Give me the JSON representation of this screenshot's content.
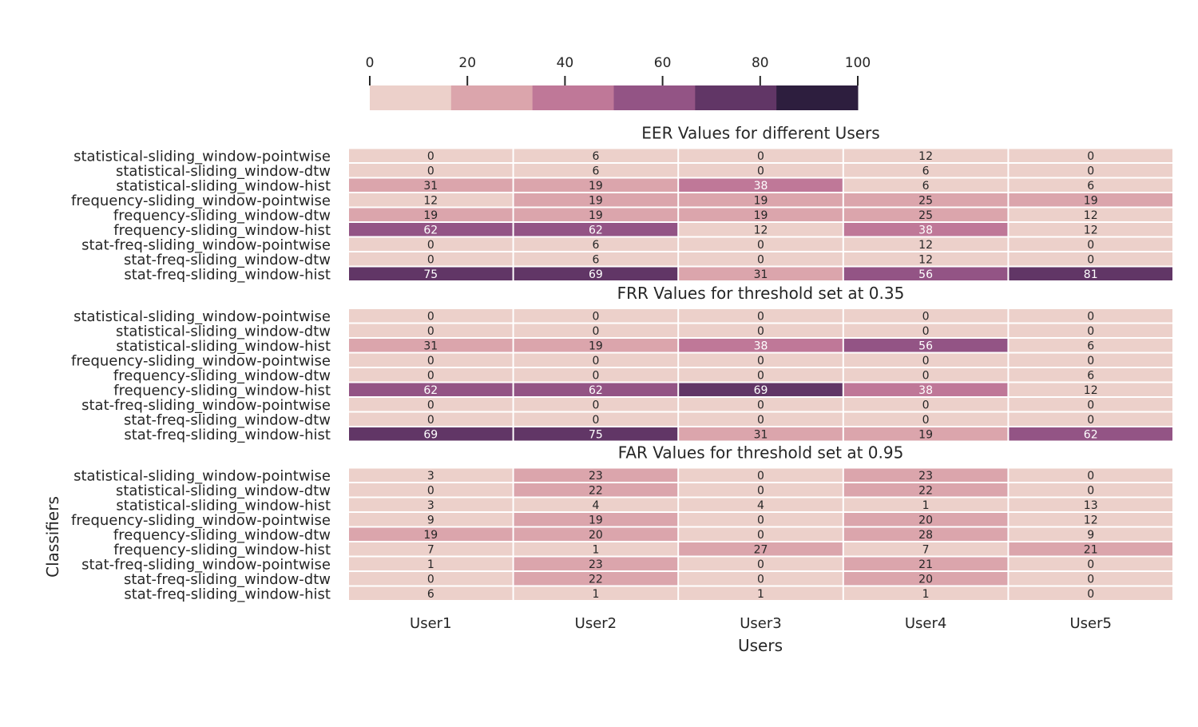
{
  "colorbar": {
    "ticks": [
      0,
      20,
      40,
      60,
      80,
      100
    ],
    "range": [
      0,
      100
    ],
    "colors": [
      "#ecd0ca",
      "#dba5ac",
      "#bf7898",
      "#935485",
      "#613666",
      "#2d1e3e"
    ]
  },
  "chart_data": {
    "type": "heatmap",
    "xlabel": "Users",
    "ylabel": "Classifiers",
    "x_categories": [
      "User1",
      "User2",
      "User3",
      "User4",
      "User5"
    ],
    "y_categories": [
      "statistical-sliding_window-pointwise",
      "statistical-sliding_window-dtw",
      "statistical-sliding_window-hist",
      "frequency-sliding_window-pointwise",
      "frequency-sliding_window-dtw",
      "frequency-sliding_window-hist",
      "stat-freq-sliding_window-pointwise",
      "stat-freq-sliding_window-dtw",
      "stat-freq-sliding_window-hist"
    ],
    "panels": [
      {
        "title": "EER Values for different Users",
        "values": [
          [
            0,
            6,
            0,
            12,
            0
          ],
          [
            0,
            6,
            0,
            6,
            0
          ],
          [
            31,
            19,
            38,
            6,
            6
          ],
          [
            12,
            19,
            19,
            25,
            19
          ],
          [
            19,
            19,
            19,
            25,
            12
          ],
          [
            62,
            62,
            12,
            38,
            12
          ],
          [
            0,
            6,
            0,
            12,
            0
          ],
          [
            0,
            6,
            0,
            12,
            0
          ],
          [
            75,
            69,
            31,
            56,
            81
          ]
        ]
      },
      {
        "title": "FRR Values for threshold set at 0.35",
        "values": [
          [
            0,
            0,
            0,
            0,
            0
          ],
          [
            0,
            0,
            0,
            0,
            0
          ],
          [
            31,
            19,
            38,
            56,
            6
          ],
          [
            0,
            0,
            0,
            0,
            0
          ],
          [
            0,
            0,
            0,
            0,
            6
          ],
          [
            62,
            62,
            69,
            38,
            12
          ],
          [
            0,
            0,
            0,
            0,
            0
          ],
          [
            0,
            0,
            0,
            0,
            0
          ],
          [
            69,
            75,
            31,
            19,
            62
          ]
        ]
      },
      {
        "title": "FAR Values for threshold set at 0.95",
        "values": [
          [
            3,
            23,
            0,
            23,
            0
          ],
          [
            0,
            22,
            0,
            22,
            0
          ],
          [
            3,
            4,
            4,
            1,
            13
          ],
          [
            9,
            19,
            0,
            20,
            12
          ],
          [
            19,
            20,
            0,
            28,
            9
          ],
          [
            7,
            1,
            27,
            7,
            21
          ],
          [
            1,
            23,
            0,
            21,
            0
          ],
          [
            0,
            22,
            0,
            20,
            0
          ],
          [
            6,
            1,
            1,
            1,
            0
          ]
        ]
      }
    ]
  }
}
